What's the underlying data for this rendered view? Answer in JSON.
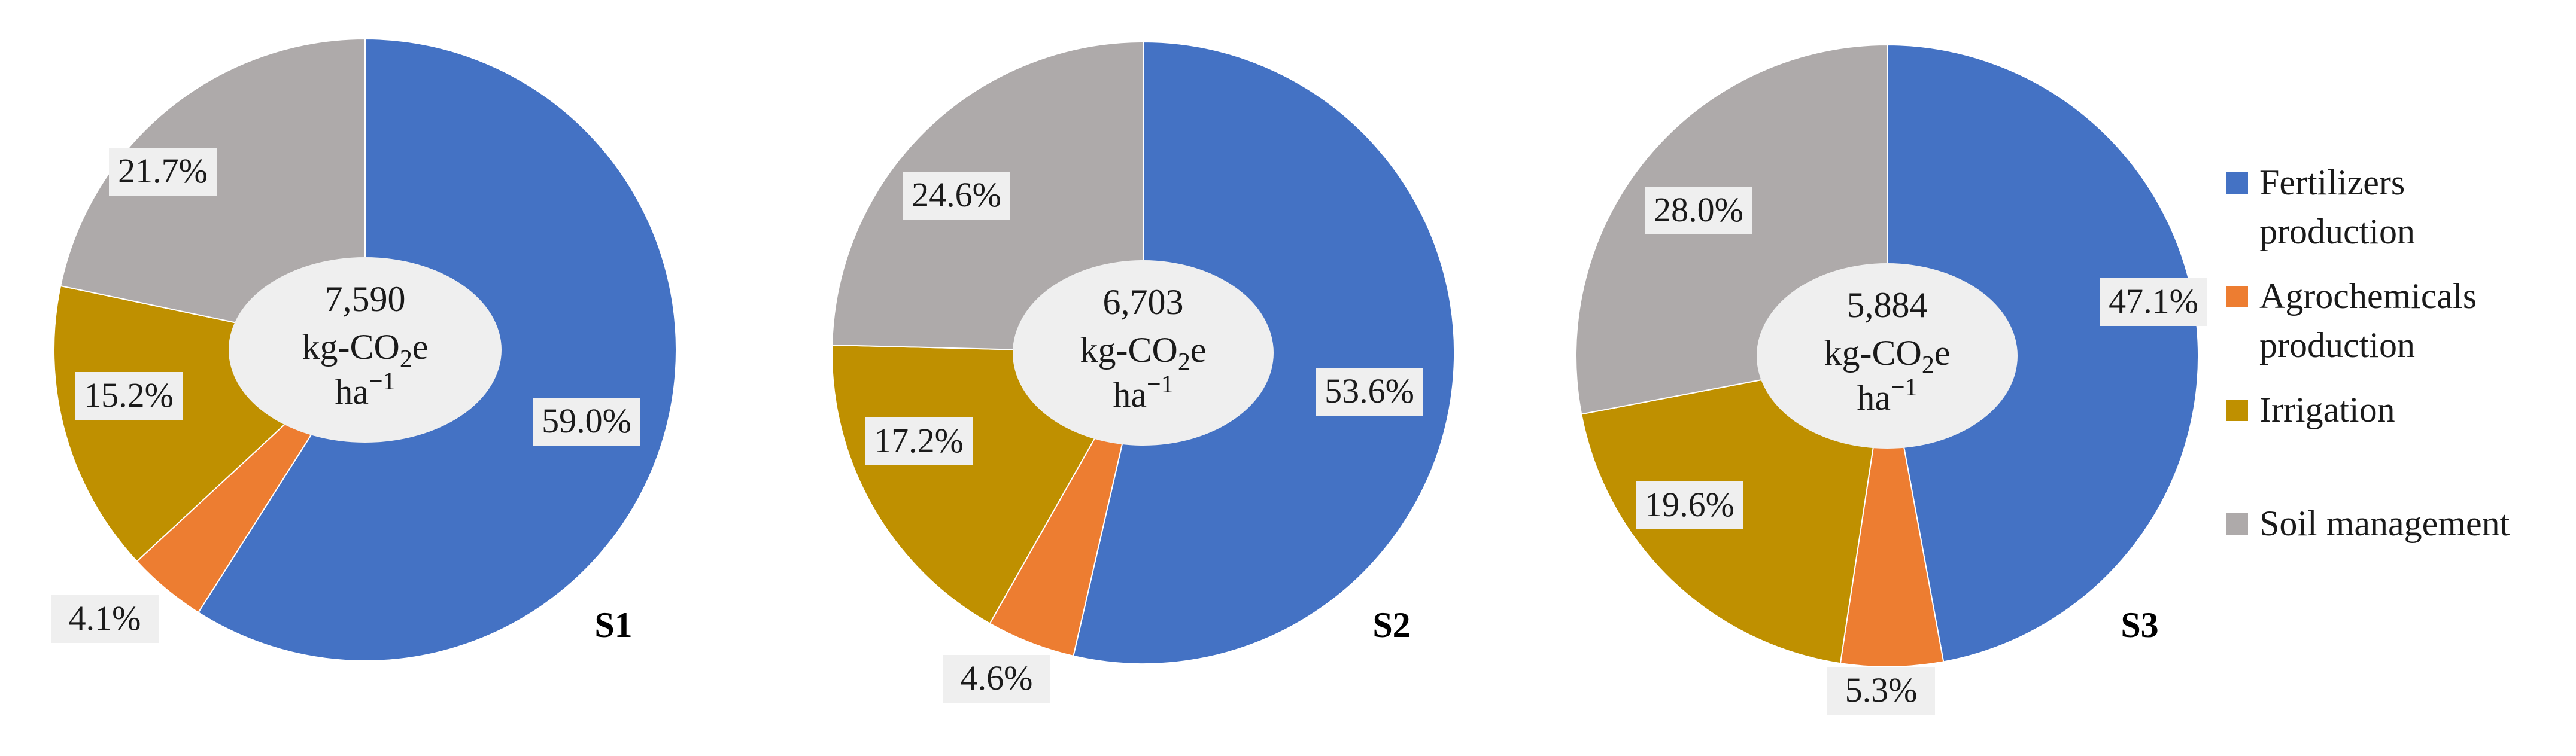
{
  "chart_data": [
    {
      "type": "pie",
      "label": "S1",
      "center_value": "7,590",
      "center_unit_line1": "kg-CO",
      "center_unit_sub": "2",
      "center_unit_line1_tail": "e",
      "center_unit_line2": "ha",
      "center_unit_sup": "−1",
      "categories": [
        "Fertilizers production",
        "Agrochemicals production",
        "Irrigation",
        "Soil management"
      ],
      "values": [
        59.0,
        4.1,
        15.2,
        21.7
      ],
      "value_labels": [
        "59.0%",
        "4.1%",
        "15.2%",
        "21.7%"
      ]
    },
    {
      "type": "pie",
      "label": "S2",
      "center_value": "6,703",
      "center_unit_line1": "kg-CO",
      "center_unit_sub": "2",
      "center_unit_line1_tail": "e",
      "center_unit_line2": "ha",
      "center_unit_sup": "−1",
      "categories": [
        "Fertilizers production",
        "Agrochemicals production",
        "Irrigation",
        "Soil management"
      ],
      "values": [
        53.6,
        4.6,
        17.2,
        24.6
      ],
      "value_labels": [
        "53.6%",
        "4.6%",
        "17.2%",
        "24.6%"
      ]
    },
    {
      "type": "pie",
      "label": "S3",
      "center_value": "5,884",
      "center_unit_line1": "kg-CO",
      "center_unit_sub": "2",
      "center_unit_line1_tail": "e",
      "center_unit_line2": "ha",
      "center_unit_sup": "−1",
      "categories": [
        "Fertilizers production",
        "Agrochemicals production",
        "Irrigation",
        "Soil management"
      ],
      "values": [
        47.1,
        5.3,
        19.6,
        28.0
      ],
      "value_labels": [
        "47.1%",
        "5.3%",
        "19.6%",
        "28.0%"
      ]
    }
  ],
  "legend": {
    "placement": "right",
    "items": [
      {
        "lines": [
          "Fertilizers",
          "production"
        ],
        "color": "#4472c4"
      },
      {
        "lines": [
          "Agrochemicals",
          "production"
        ],
        "color": "#ed7d31"
      },
      {
        "lines": [
          "Irrigation"
        ],
        "color": "#bf9000"
      },
      {
        "lines": [
          "Soil management"
        ],
        "color": "#aeaaaa"
      }
    ]
  },
  "colors": {
    "fertilizers": "#4472c4",
    "agrochemicals": "#ed7d31",
    "irrigation": "#bf9000",
    "soil": "#aeaaaa",
    "center_hole": "#efefef"
  }
}
